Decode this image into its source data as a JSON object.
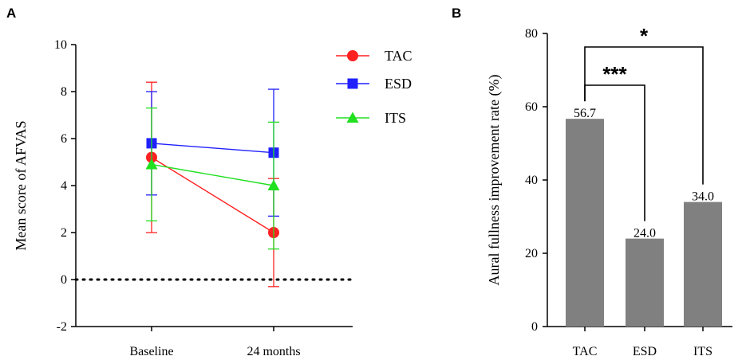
{
  "chart_data": [
    {
      "panel": "A",
      "type": "line",
      "title": "",
      "xlabel": "",
      "ylabel": "Mean score of AFVAS",
      "categories": [
        "Baseline",
        "24 months"
      ],
      "ylim": [
        -2,
        10
      ],
      "yticks": [
        "-2",
        "0",
        "2",
        "4",
        "6",
        "8",
        "10"
      ],
      "reference_line": 0,
      "legend_position": "top-right",
      "series": [
        {
          "name": "TAC",
          "marker": "circle",
          "color": "#ff2020",
          "values": [
            5.2,
            2.0
          ],
          "err_low": [
            2.0,
            -0.3
          ],
          "err_high": [
            8.4,
            4.3
          ]
        },
        {
          "name": "ESD",
          "marker": "square",
          "color": "#2020ff",
          "values": [
            5.8,
            5.4
          ],
          "err_low": [
            3.6,
            2.7
          ],
          "err_high": [
            8.0,
            8.1
          ]
        },
        {
          "name": "ITS",
          "marker": "triangle",
          "color": "#20e020",
          "values": [
            4.9,
            4.0
          ],
          "err_low": [
            2.5,
            1.3
          ],
          "err_high": [
            7.3,
            6.7
          ]
        }
      ]
    },
    {
      "panel": "B",
      "type": "bar",
      "title": "",
      "xlabel": "",
      "ylabel": "Aural fullness improvement rate (%)",
      "categories": [
        "TAC",
        "ESD",
        "ITS"
      ],
      "values": [
        56.7,
        24.0,
        34.0
      ],
      "value_labels": [
        "56.7",
        "24.0",
        "34.0"
      ],
      "ylim": [
        0,
        80
      ],
      "yticks": [
        "0",
        "20",
        "40",
        "60",
        "80"
      ],
      "bar_color": "#808080",
      "significance": [
        {
          "from": "TAC",
          "to": "ESD",
          "label": "***"
        },
        {
          "from": "TAC",
          "to": "ITS",
          "label": "*"
        }
      ]
    }
  ]
}
